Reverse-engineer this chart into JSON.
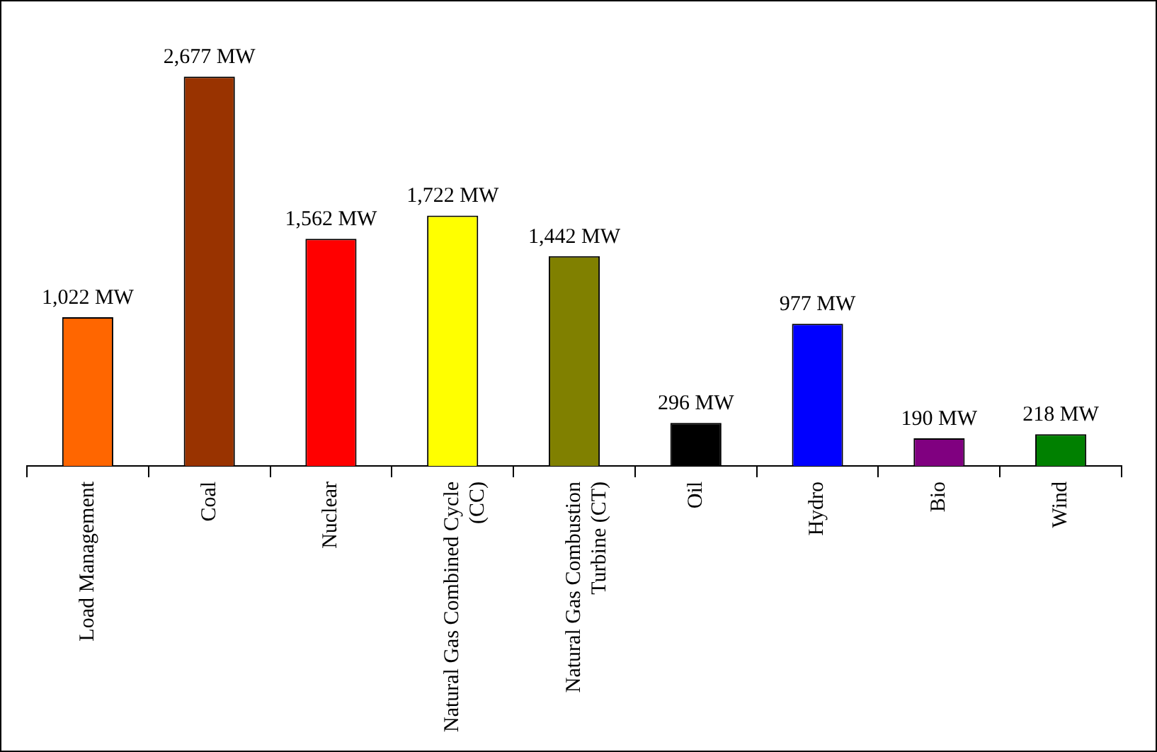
{
  "chart_data": {
    "type": "bar",
    "categories": [
      "Load Management",
      "Coal",
      "Nuclear",
      "Natural Gas Combined Cycle (CC)",
      "Natural Gas Combustion Turbine (CT)",
      "Oil",
      "Hydro",
      "Bio",
      "Wind"
    ],
    "values": [
      1022,
      2677,
      1562,
      1722,
      1442,
      296,
      977,
      190,
      218
    ],
    "colors": [
      "#ff6600",
      "#993300",
      "#ff0000",
      "#ffff00",
      "#808000",
      "#000000",
      "#0000ff",
      "#800080",
      "#008000"
    ],
    "value_labels": [
      "1,022 MW",
      "2,677 MW",
      "1,562 MW",
      "1,722 MW",
      "1,442 MW",
      "296 MW",
      "977 MW",
      "190 MW",
      "218 MW"
    ],
    "grid": false,
    "legend": false
  }
}
